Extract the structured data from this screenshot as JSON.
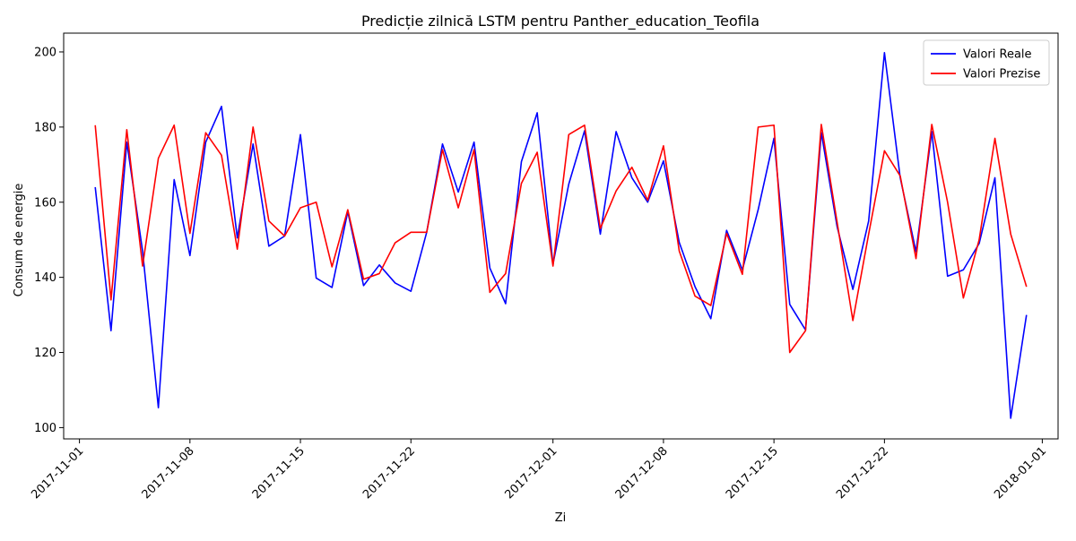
{
  "chart_data": {
    "type": "line",
    "title": "Predicție zilnică LSTM pentru Panther_education_Teofila",
    "xlabel": "Zi",
    "ylabel": "Consum de energie",
    "x_start": "2017-11-02",
    "x_ticks": [
      "2017-11-01",
      "2017-11-08",
      "2017-11-15",
      "2017-11-22",
      "2017-12-01",
      "2017-12-08",
      "2017-12-15",
      "2017-12-22",
      "2018-01-01"
    ],
    "xlim": [
      "2017-10-31",
      "2018-01-02"
    ],
    "y_ticks": [
      100,
      120,
      140,
      160,
      180,
      200
    ],
    "ylim": [
      97,
      205
    ],
    "grid": false,
    "legend_position": "top-right",
    "series": [
      {
        "name": "Valori Reale",
        "color": "#0000ff",
        "values": [
          164.0,
          125.8,
          176.0,
          147.0,
          105.3,
          166.0,
          145.8,
          176.0,
          185.5,
          150.5,
          175.5,
          148.3,
          151.0,
          178.0,
          139.8,
          137.3,
          157.5,
          137.8,
          143.3,
          138.5,
          136.3,
          152.0,
          175.5,
          162.7,
          176.0,
          142.5,
          133.0,
          170.8,
          183.8,
          143.5,
          164.8,
          179.0,
          151.5,
          178.8,
          166.5,
          160.0,
          171.0,
          149.3,
          137.5,
          129.0,
          152.5,
          142.0,
          158.0,
          177.0,
          132.8,
          126.0,
          178.5,
          153.5,
          136.8,
          155.0,
          199.8,
          166.5,
          146.8,
          178.8,
          140.3,
          142.0,
          149.0,
          166.5,
          102.5,
          130.0
        ]
      },
      {
        "name": "Valori Prezise",
        "color": "#ff0000",
        "values": [
          180.5,
          134.0,
          179.3,
          143.0,
          171.7,
          180.5,
          151.7,
          178.5,
          172.5,
          147.5,
          180.0,
          155.0,
          151.0,
          158.5,
          160.0,
          142.8,
          158.0,
          139.5,
          141.0,
          149.2,
          152.0,
          152.0,
          174.0,
          158.5,
          174.0,
          136.0,
          141.0,
          165.0,
          173.3,
          143.0,
          178.0,
          180.5,
          153.0,
          163.0,
          169.3,
          160.5,
          175.0,
          147.0,
          135.0,
          132.5,
          151.7,
          140.8,
          180.0,
          180.5,
          120.0,
          125.8,
          180.7,
          154.7,
          128.5,
          151.5,
          173.7,
          167.0,
          145.0,
          180.7,
          160.0,
          134.5,
          150.0,
          177.0,
          151.5,
          137.5
        ]
      }
    ]
  }
}
